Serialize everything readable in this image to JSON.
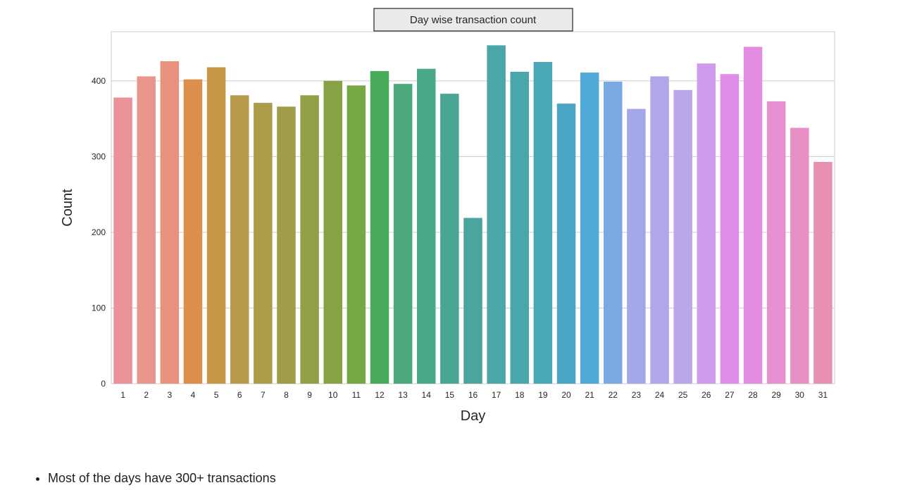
{
  "chart_data": {
    "type": "bar",
    "title": "Day wise transaction count",
    "xlabel": "Day",
    "ylabel": "Count",
    "ylim": [
      0,
      465
    ],
    "yticks": [
      0,
      100,
      200,
      300,
      400
    ],
    "grid": true,
    "categories": [
      "1",
      "2",
      "3",
      "4",
      "5",
      "6",
      "7",
      "8",
      "9",
      "10",
      "11",
      "12",
      "13",
      "14",
      "15",
      "16",
      "17",
      "18",
      "19",
      "20",
      "21",
      "22",
      "23",
      "24",
      "25",
      "26",
      "27",
      "28",
      "29",
      "30",
      "31"
    ],
    "values": [
      378,
      406,
      426,
      402,
      418,
      381,
      371,
      366,
      381,
      400,
      394,
      413,
      396,
      416,
      383,
      219,
      447,
      412,
      425,
      370,
      411,
      399,
      363,
      406,
      388,
      423,
      409,
      445,
      373,
      338,
      293
    ],
    "colors": [
      "#ea929a",
      "#e9978c",
      "#e8917f",
      "#db8f4b",
      "#c59746",
      "#b99a4d",
      "#ab9c48",
      "#9f9d49",
      "#929f46",
      "#86a244",
      "#76a844",
      "#48ab59",
      "#4aa87a",
      "#49a88a",
      "#49a694",
      "#4aa59f",
      "#4aa6a8",
      "#49a6ab",
      "#4aa7b5",
      "#4aa6c4",
      "#50a9d8",
      "#7aa8e3",
      "#a2a7e8",
      "#b2a6ea",
      "#bca6ea",
      "#cf9bea",
      "#df8ce8",
      "#e48de0",
      "#e690cf",
      "#e88fc4",
      "#e890b1"
    ]
  },
  "notes": [
    "Most of the days have 300+ transactions"
  ]
}
